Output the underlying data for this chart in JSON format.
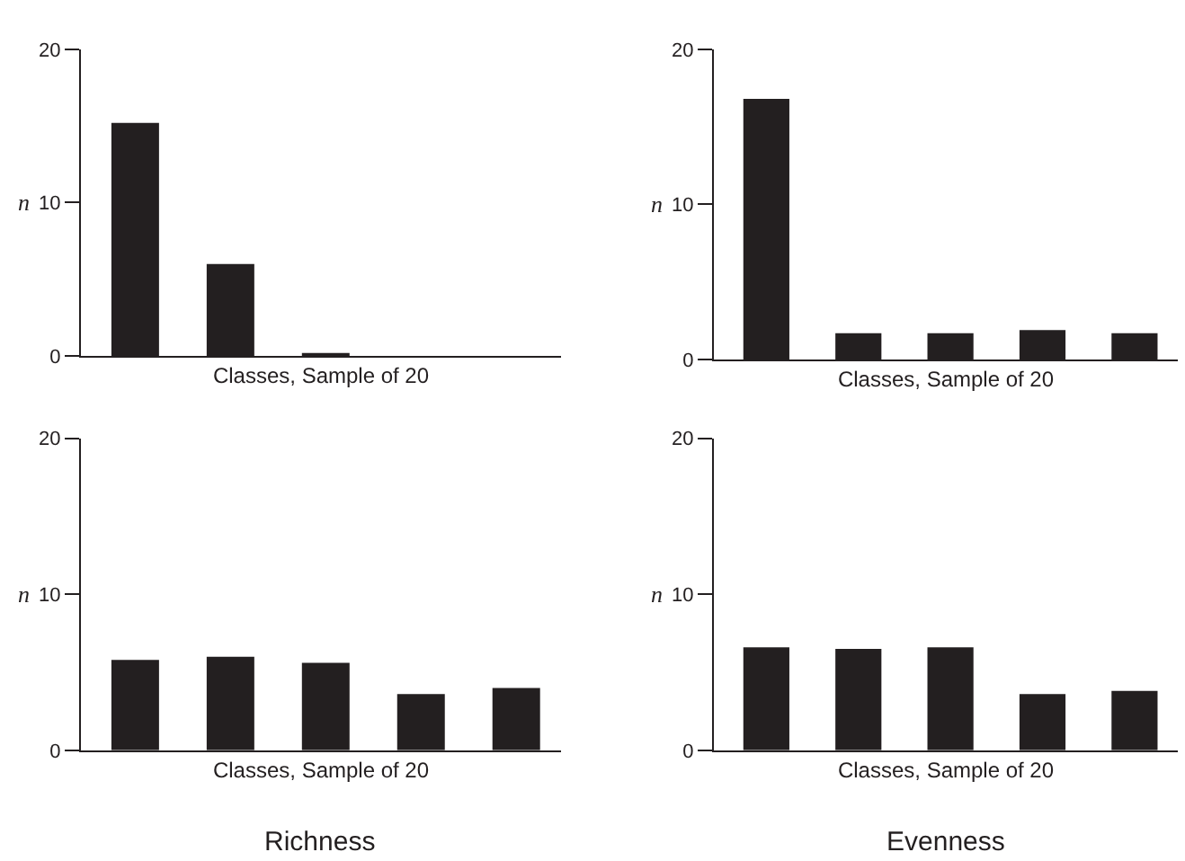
{
  "chart_data": [
    {
      "type": "bar",
      "categories": [
        null,
        null,
        null,
        null,
        null
      ],
      "values": [
        15.2,
        6.0,
        0.2,
        0,
        0
      ],
      "color": "#231f20",
      "xlabel": "Classes, Sample of 20",
      "ylabel": "n",
      "ylim": [
        0,
        20
      ],
      "yticks": [
        0,
        10,
        20
      ]
    },
    {
      "type": "bar",
      "categories": [
        null,
        null,
        null,
        null,
        null
      ],
      "values": [
        16.8,
        1.7,
        1.7,
        1.9,
        1.7
      ],
      "color": "#231f20",
      "xlabel": "Classes, Sample of 20",
      "ylabel": "n",
      "ylim": [
        0,
        20
      ],
      "yticks": [
        0,
        10,
        20
      ]
    },
    {
      "type": "bar",
      "categories": [
        null,
        null,
        null,
        null,
        null
      ],
      "values": [
        5.8,
        6.0,
        5.6,
        3.6,
        4.0
      ],
      "color": "#231f20",
      "xlabel": "Classes, Sample of 20",
      "ylabel": "n",
      "ylim": [
        0,
        20
      ],
      "yticks": [
        0,
        10,
        20
      ],
      "annotations": [
        "Richness"
      ]
    },
    {
      "type": "bar",
      "categories": [
        null,
        null,
        null,
        null,
        null
      ],
      "values": [
        6.6,
        6.5,
        6.6,
        3.6,
        3.8
      ],
      "color": "#231f20",
      "xlabel": "Classes, Sample of 20",
      "ylabel": "n",
      "ylim": [
        0,
        20
      ],
      "yticks": [
        0,
        10,
        20
      ],
      "annotations": [
        "Evenness"
      ]
    }
  ]
}
